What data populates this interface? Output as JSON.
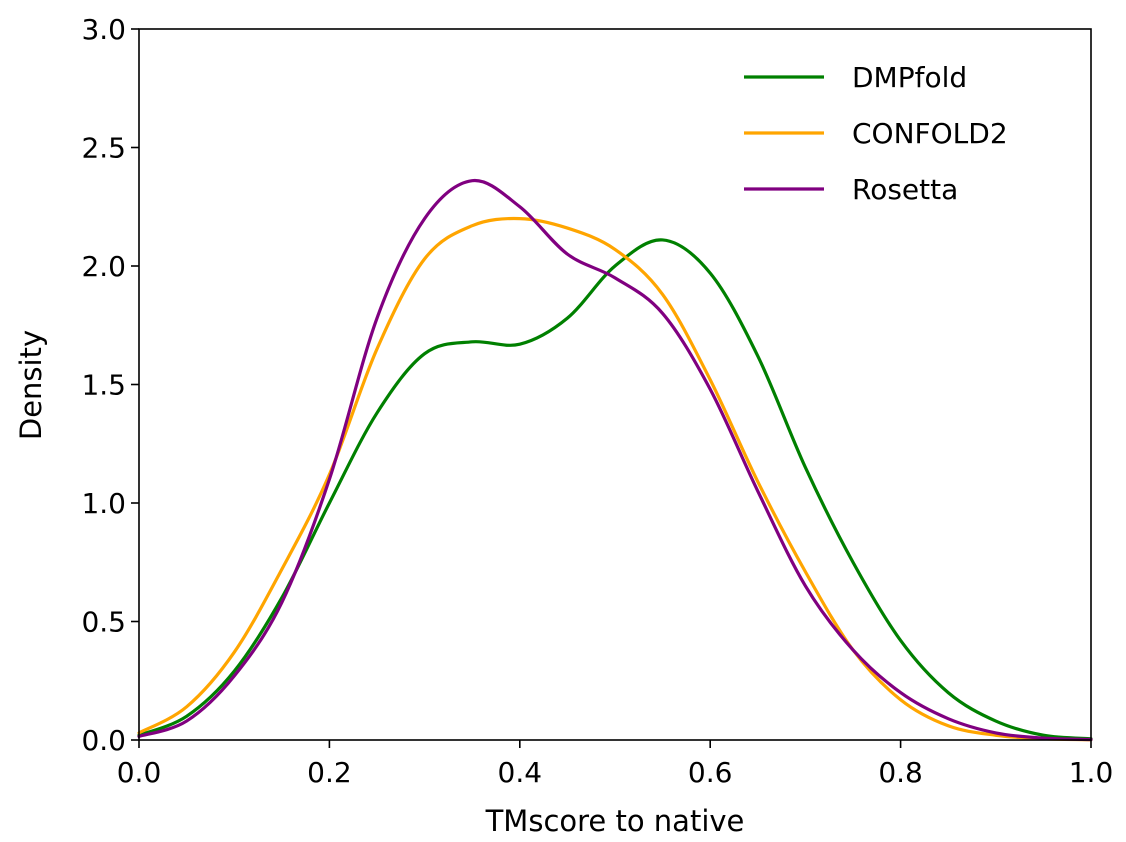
{
  "chart_data": {
    "type": "line",
    "title": "",
    "xlabel": "TMscore to native",
    "ylabel": "Density",
    "xlim": [
      0.0,
      1.0
    ],
    "ylim": [
      0.0,
      3.0
    ],
    "xticks": [
      "0.0",
      "0.2",
      "0.4",
      "0.6",
      "0.8",
      "1.0"
    ],
    "yticks": [
      "0.0",
      "0.5",
      "1.0",
      "1.5",
      "2.0",
      "2.5",
      "3.0"
    ],
    "grid": false,
    "legend_position": "top-right",
    "x": [
      0.0,
      0.05,
      0.1,
      0.15,
      0.2,
      0.25,
      0.3,
      0.35,
      0.4,
      0.45,
      0.5,
      0.55,
      0.6,
      0.65,
      0.7,
      0.75,
      0.8,
      0.85,
      0.9,
      0.95,
      1.0
    ],
    "series": [
      {
        "name": "DMPfold",
        "color": "#008000",
        "values": [
          0.02,
          0.1,
          0.29,
          0.6,
          1.0,
          1.38,
          1.63,
          1.68,
          1.67,
          1.78,
          2.0,
          2.11,
          1.97,
          1.62,
          1.15,
          0.75,
          0.42,
          0.2,
          0.08,
          0.02,
          0.005
        ]
      },
      {
        "name": "CONFOLD2",
        "color": "#FFA500",
        "values": [
          0.03,
          0.14,
          0.37,
          0.72,
          1.12,
          1.65,
          2.03,
          2.17,
          2.2,
          2.16,
          2.07,
          1.88,
          1.52,
          1.09,
          0.71,
          0.38,
          0.17,
          0.06,
          0.02,
          0.005,
          0.001
        ]
      },
      {
        "name": "Rosetta",
        "color": "#800080",
        "values": [
          0.015,
          0.08,
          0.27,
          0.58,
          1.1,
          1.78,
          2.2,
          2.36,
          2.25,
          2.05,
          1.95,
          1.8,
          1.48,
          1.05,
          0.65,
          0.38,
          0.2,
          0.09,
          0.03,
          0.008,
          0.002
        ]
      }
    ]
  }
}
